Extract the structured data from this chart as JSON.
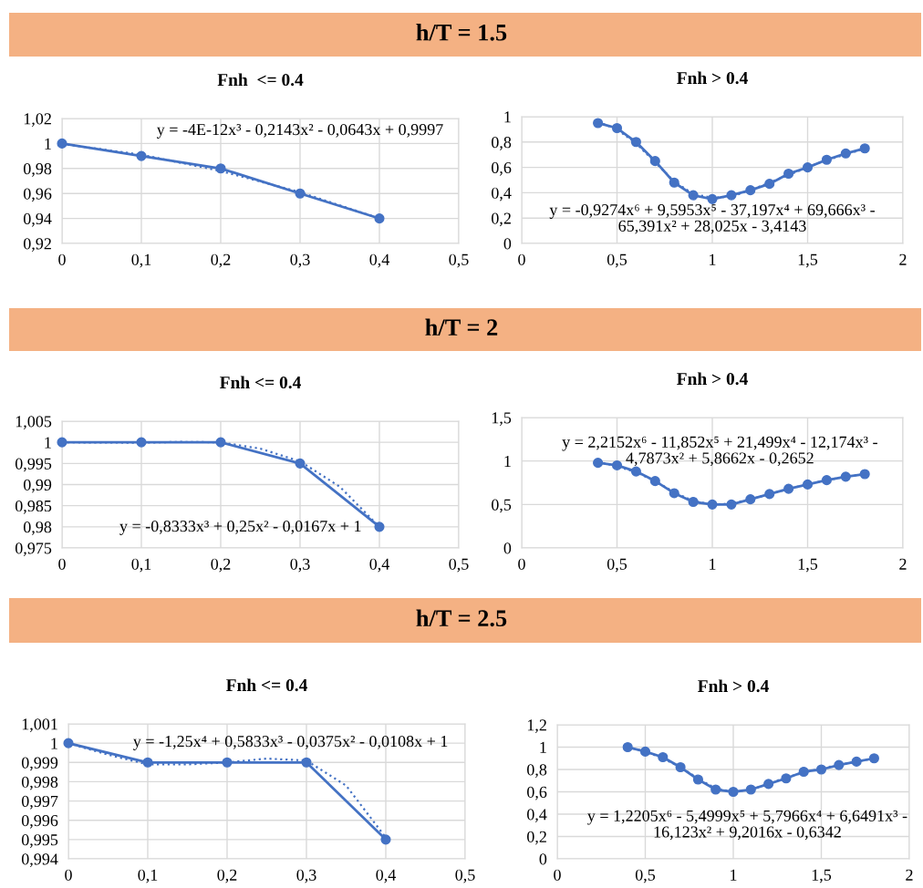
{
  "chart_data": [
    {
      "type": "line",
      "title": "h/T = 1.5",
      "subtitle": "Fnh  <= 0.4",
      "x": [
        0,
        0.1,
        0.2,
        0.3,
        0.4
      ],
      "marker": "circle",
      "line_style": "solid",
      "grid": true,
      "series": [
        {
          "color": "#4472c4",
          "values": [
            1,
            0.99,
            0.98,
            0.96,
            0.94
          ]
        },
        {
          "color": "#4472c4",
          "marker": "none",
          "line_style": "dotted",
          "x": [
            0,
            0.1,
            0.2,
            0.3,
            0.4
          ],
          "values": [
            0.9997,
            0.991,
            0.978,
            0.961,
            0.94
          ]
        }
      ],
      "xlim": [
        0,
        0.5
      ],
      "xticks": [
        0,
        {
          "value": 0.1,
          "label": "0,1"
        },
        {
          "value": 0.2,
          "label": "0,2"
        },
        {
          "value": 0.3,
          "label": "0,3"
        },
        {
          "value": 0.4,
          "label": "0,4"
        },
        {
          "value": 0.5,
          "label": "0,5"
        }
      ],
      "ylim": [
        0.92,
        1.02
      ],
      "yticks": [
        {
          "value": 0.92,
          "label": "0,92"
        },
        {
          "value": 0.94,
          "label": "0,94"
        },
        {
          "value": 0.96,
          "label": "0,96"
        },
        {
          "value": 0.98,
          "label": "0,98"
        },
        1,
        {
          "value": 1.02,
          "label": "1,02"
        }
      ],
      "annotations": [
        "y = -4E-12x³ - 0,2143x² - 0,0643x + 0,9997"
      ]
    },
    {
      "type": "line",
      "subtitle": "Fnh > 0.4",
      "x": [
        0.4,
        0.5,
        0.6,
        0.7,
        0.8,
        0.9,
        1.0,
        1.1,
        1.2,
        1.3,
        1.4,
        1.5,
        1.6,
        1.7,
        1.8
      ],
      "marker": "circle",
      "line_style": "solid",
      "grid": true,
      "series": [
        {
          "color": "#4472c4",
          "values": [
            0.95,
            0.91,
            0.8,
            0.65,
            0.48,
            0.38,
            0.35,
            0.38,
            0.42,
            0.47,
            0.55,
            0.6,
            0.66,
            0.71,
            0.75
          ]
        },
        {
          "color": "#4472c4",
          "marker": "none",
          "line_style": "dotted",
          "x": [
            0.4,
            0.5,
            0.6,
            0.7,
            0.8,
            0.9,
            1.0,
            1.1,
            1.2,
            1.3,
            1.4,
            1.5,
            1.6,
            1.7,
            1.8
          ],
          "values": [
            0.96,
            0.9,
            0.79,
            0.64,
            0.49,
            0.39,
            0.36,
            0.37,
            0.42,
            0.48,
            0.54,
            0.6,
            0.66,
            0.7,
            0.75
          ]
        }
      ],
      "xlim": [
        0,
        2
      ],
      "xticks": [
        0,
        {
          "value": 0.5,
          "label": "0,5"
        },
        1,
        {
          "value": 1.5,
          "label": "1,5"
        },
        2
      ],
      "ylim": [
        0,
        1
      ],
      "yticks": [
        0,
        {
          "value": 0.2,
          "label": "0,2"
        },
        {
          "value": 0.4,
          "label": "0,4"
        },
        {
          "value": 0.6,
          "label": "0,6"
        },
        {
          "value": 0.8,
          "label": "0,8"
        },
        1
      ],
      "annotations": [
        "y = -0,9274x⁶ + 9,5953x⁵ - 37,197x⁴ + 69,666x³ -\n65,391x² + 28,025x - 3,4143"
      ]
    },
    {
      "type": "line",
      "title": "h/T = 2",
      "subtitle": "Fnh <= 0.4",
      "x": [
        0,
        0.1,
        0.2,
        0.3,
        0.4
      ],
      "marker": "circle",
      "line_style": "solid",
      "grid": true,
      "series": [
        {
          "color": "#4472c4",
          "values": [
            1,
            1,
            1,
            0.995,
            0.98
          ]
        },
        {
          "color": "#4472c4",
          "marker": "none",
          "line_style": "dotted",
          "x": [
            0,
            0.1,
            0.15,
            0.2,
            0.25,
            0.3,
            0.35,
            0.4
          ],
          "values": [
            1,
            0.9999,
            1.0001,
            1.0,
            0.9985,
            0.9955,
            0.9895,
            0.98
          ]
        }
      ],
      "xlim": [
        0,
        0.5
      ],
      "xticks": [
        0,
        {
          "value": 0.1,
          "label": "0,1"
        },
        {
          "value": 0.2,
          "label": "0,2"
        },
        {
          "value": 0.3,
          "label": "0,3"
        },
        {
          "value": 0.4,
          "label": "0,4"
        },
        {
          "value": 0.5,
          "label": "0,5"
        }
      ],
      "ylim": [
        0.975,
        1.005
      ],
      "yticks": [
        {
          "value": 0.975,
          "label": "0,975"
        },
        {
          "value": 0.98,
          "label": "0,98"
        },
        {
          "value": 0.985,
          "label": "0,985"
        },
        {
          "value": 0.99,
          "label": "0,99"
        },
        {
          "value": 0.995,
          "label": "0,995"
        },
        1,
        {
          "value": 1.005,
          "label": "1,005"
        }
      ],
      "annotations": [
        "y = -0,8333x³ + 0,25x² - 0,0167x + 1"
      ]
    },
    {
      "type": "line",
      "subtitle": "Fnh > 0.4",
      "x": [
        0.4,
        0.5,
        0.6,
        0.7,
        0.8,
        0.9,
        1.0,
        1.1,
        1.2,
        1.3,
        1.4,
        1.5,
        1.6,
        1.7,
        1.8
      ],
      "marker": "circle",
      "line_style": "solid",
      "grid": true,
      "series": [
        {
          "color": "#4472c4",
          "values": [
            0.98,
            0.95,
            0.88,
            0.77,
            0.63,
            0.53,
            0.5,
            0.5,
            0.56,
            0.62,
            0.68,
            0.73,
            0.78,
            0.82,
            0.85
          ]
        },
        {
          "color": "#4472c4",
          "marker": "none",
          "line_style": "dotted",
          "x": [
            0.4,
            0.5,
            0.6,
            0.7,
            0.8,
            0.9,
            1.0,
            1.1,
            1.2,
            1.3,
            1.4,
            1.5,
            1.6,
            1.7,
            1.8
          ],
          "values": [
            0.99,
            0.94,
            0.87,
            0.77,
            0.64,
            0.54,
            0.5,
            0.51,
            0.56,
            0.62,
            0.68,
            0.73,
            0.78,
            0.82,
            0.85
          ]
        }
      ],
      "xlim": [
        0,
        2
      ],
      "xticks": [
        0,
        {
          "value": 0.5,
          "label": "0,5"
        },
        1,
        {
          "value": 1.5,
          "label": "1,5"
        },
        2
      ],
      "ylim": [
        0,
        1.5
      ],
      "yticks": [
        0,
        {
          "value": 0.5,
          "label": "0,5"
        },
        1,
        {
          "value": 1.5,
          "label": "1,5"
        }
      ],
      "annotations": [
        "y = 2,2152x⁶ - 11,852x⁵ + 21,499x⁴ - 12,174x³ -\n4,7873x² + 5,8662x - 0,2652"
      ]
    },
    {
      "type": "line",
      "title": "h/T = 2.5",
      "subtitle": "Fnh <= 0.4",
      "x": [
        0,
        0.1,
        0.2,
        0.3,
        0.4
      ],
      "marker": "circle",
      "line_style": "solid",
      "grid": true,
      "series": [
        {
          "color": "#4472c4",
          "values": [
            1,
            0.999,
            0.999,
            0.999,
            0.995
          ]
        },
        {
          "color": "#4472c4",
          "marker": "none",
          "line_style": "dotted",
          "x": [
            0,
            0.05,
            0.1,
            0.15,
            0.2,
            0.25,
            0.3,
            0.35,
            0.4
          ],
          "values": [
            1,
            0.9994,
            0.9989,
            0.9989,
            0.999,
            0.9992,
            0.9991,
            0.9978,
            0.9951
          ]
        }
      ],
      "xlim": [
        0,
        0.5
      ],
      "xticks": [
        0,
        {
          "value": 0.1,
          "label": "0,1"
        },
        {
          "value": 0.2,
          "label": "0,2"
        },
        {
          "value": 0.3,
          "label": "0,3"
        },
        {
          "value": 0.4,
          "label": "0,4"
        },
        {
          "value": 0.5,
          "label": "0,5"
        }
      ],
      "ylim": [
        0.994,
        1.001
      ],
      "yticks": [
        {
          "value": 0.994,
          "label": "0,994"
        },
        {
          "value": 0.995,
          "label": "0,995"
        },
        {
          "value": 0.996,
          "label": "0,996"
        },
        {
          "value": 0.997,
          "label": "0,997"
        },
        {
          "value": 0.998,
          "label": "0,998"
        },
        {
          "value": 0.999,
          "label": "0,999"
        },
        1,
        {
          "value": 1.001,
          "label": "1,001"
        }
      ],
      "annotations": [
        "y = -1,25x⁴ + 0,5833x³ - 0,0375x² - 0,0108x + 1"
      ]
    },
    {
      "type": "line",
      "subtitle": "Fnh > 0.4",
      "x": [
        0.4,
        0.5,
        0.6,
        0.7,
        0.8,
        0.9,
        1.0,
        1.1,
        1.2,
        1.3,
        1.4,
        1.5,
        1.6,
        1.7,
        1.8
      ],
      "marker": "circle",
      "line_style": "solid",
      "grid": true,
      "series": [
        {
          "color": "#4472c4",
          "values": [
            1.0,
            0.96,
            0.91,
            0.82,
            0.71,
            0.62,
            0.6,
            0.62,
            0.67,
            0.72,
            0.78,
            0.8,
            0.84,
            0.87,
            0.9
          ]
        },
        {
          "color": "#4472c4",
          "marker": "none",
          "line_style": "dotted",
          "x": [
            0.4,
            0.5,
            0.6,
            0.7,
            0.8,
            0.9,
            1.0,
            1.1,
            1.2,
            1.3,
            1.4,
            1.5,
            1.6,
            1.7,
            1.8
          ],
          "values": [
            1.0,
            0.96,
            0.9,
            0.82,
            0.72,
            0.63,
            0.6,
            0.62,
            0.67,
            0.73,
            0.77,
            0.81,
            0.84,
            0.87,
            0.9
          ]
        }
      ],
      "xlim": [
        0,
        2
      ],
      "xticks": [
        0,
        {
          "value": 0.5,
          "label": "0,5"
        },
        1,
        {
          "value": 1.5,
          "label": "1,5"
        },
        2
      ],
      "ylim": [
        0,
        1.2
      ],
      "yticks": [
        0,
        {
          "value": 0.2,
          "label": "0,2"
        },
        {
          "value": 0.4,
          "label": "0,4"
        },
        {
          "value": 0.6,
          "label": "0,6"
        },
        {
          "value": 0.8,
          "label": "0,8"
        },
        1,
        {
          "value": 1.2,
          "label": "1,2"
        }
      ],
      "annotations": [
        "y = 1,2205x⁶ - 5,4999x⁵ + 5,7966x⁴ + 6,6491x³ -\n16,123x² + 9,2016x - 0,6342"
      ]
    }
  ]
}
